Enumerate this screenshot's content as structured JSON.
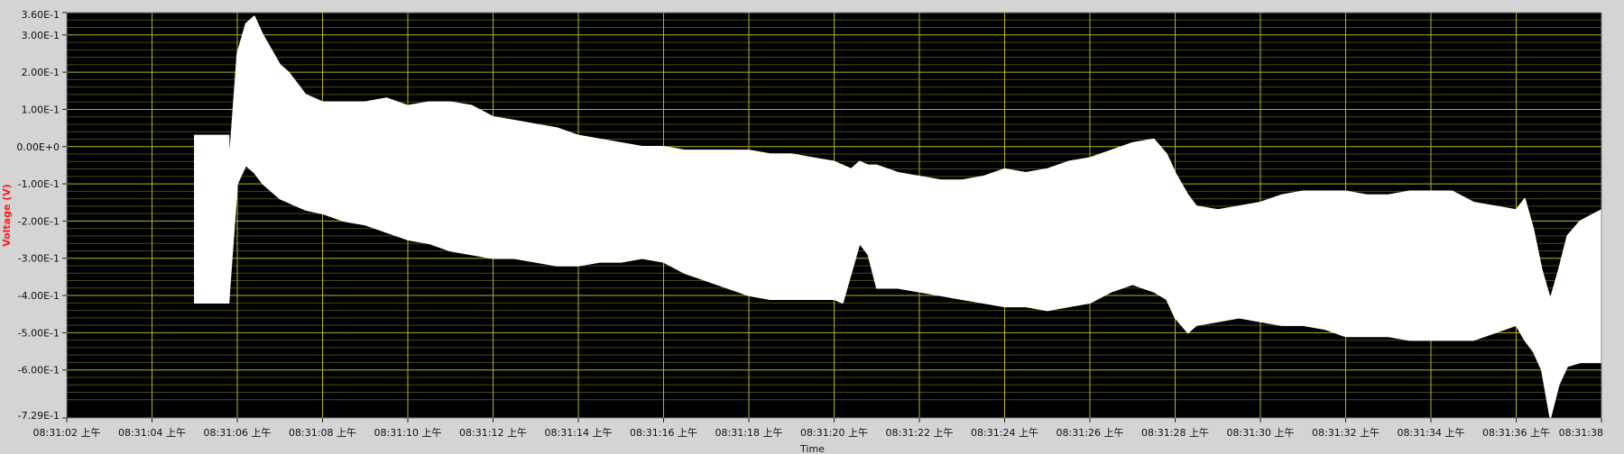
{
  "chart_data": {
    "type": "line",
    "title": "",
    "xlabel": "Time",
    "ylabel": "Voltage (V)",
    "xlim": [
      "08:31:02",
      "08:31:38"
    ],
    "ylim": [
      -0.729,
      0.36
    ],
    "y_ticks": [
      {
        "value": 0.36,
        "label": "3.60E-1"
      },
      {
        "value": 0.3,
        "label": "3.00E-1"
      },
      {
        "value": 0.2,
        "label": "2.00E-1"
      },
      {
        "value": 0.1,
        "label": "1.00E-1"
      },
      {
        "value": 0.0,
        "label": "0.00E+0"
      },
      {
        "value": -0.1,
        "label": "-1.00E-1"
      },
      {
        "value": -0.2,
        "label": "-2.00E-1"
      },
      {
        "value": -0.3,
        "label": "-3.00E-1"
      },
      {
        "value": -0.4,
        "label": "-4.00E-1"
      },
      {
        "value": -0.5,
        "label": "-5.00E-1"
      },
      {
        "value": -0.6,
        "label": "-6.00E-1"
      },
      {
        "value": -0.729,
        "label": "-7.29E-1"
      }
    ],
    "x_ticks": [
      {
        "value": "08:31:02",
        "label": "08:31:02 上午"
      },
      {
        "value": "08:31:04",
        "label": "08:31:04 上午"
      },
      {
        "value": "08:31:06",
        "label": "08:31:06 上午"
      },
      {
        "value": "08:31:08",
        "label": "08:31:08 上午"
      },
      {
        "value": "08:31:10",
        "label": "08:31:10 上午"
      },
      {
        "value": "08:31:12",
        "label": "08:31:12 上午"
      },
      {
        "value": "08:31:14",
        "label": "08:31:14 上午"
      },
      {
        "value": "08:31:16",
        "label": "08:31:16 上午"
      },
      {
        "value": "08:31:18",
        "label": "08:31:18 上午"
      },
      {
        "value": "08:31:20",
        "label": "08:31:20 上午"
      },
      {
        "value": "08:31:22",
        "label": "08:31:22 上午"
      },
      {
        "value": "08:31:24",
        "label": "08:31:24 上午"
      },
      {
        "value": "08:31:26",
        "label": "08:31:26 上午"
      },
      {
        "value": "08:31:28",
        "label": "08:31:28 上午"
      },
      {
        "value": "08:31:30",
        "label": "08:31:30 上午"
      },
      {
        "value": "08:31:32",
        "label": "08:31:32 上午"
      },
      {
        "value": "08:31:34",
        "label": "08:31:34 上午"
      },
      {
        "value": "08:31:36",
        "label": "08:31:36 上午"
      },
      {
        "value": "08:31:38",
        "label": "08:31:38"
      }
    ],
    "grid": true,
    "minor_grid_y": true,
    "legend": "none",
    "colors": {
      "plot_background": "#000000",
      "grid_major": "#b5b51e",
      "grid_minor": "#4a4a12",
      "signal": "#ffffff",
      "frame": "#d4d4d4",
      "ylabel_color": "#ff1a1a"
    },
    "series": [
      {
        "envelope": true,
        "x": [
          "08:31:05",
          "08:31:05.8",
          "08:31:05.81",
          "08:31:06",
          "08:31:06.2",
          "08:31:06.4",
          "08:31:06.6",
          "08:31:06.8",
          "08:31:07",
          "08:31:07.2",
          "08:31:07.4",
          "08:31:07.6",
          "08:31:08",
          "08:31:08.5",
          "08:31:09",
          "08:31:09.5",
          "08:31:10",
          "08:31:10.5",
          "08:31:11",
          "08:31:11.5",
          "08:31:12",
          "08:31:12.5",
          "08:31:13",
          "08:31:13.5",
          "08:31:14",
          "08:31:14.5",
          "08:31:15",
          "08:31:15.5",
          "08:31:16",
          "08:31:16.5",
          "08:31:17",
          "08:31:17.5",
          "08:31:18",
          "08:31:18.5",
          "08:31:19",
          "08:31:19.5",
          "08:31:20",
          "08:31:20.2",
          "08:31:20.4",
          "08:31:20.6",
          "08:31:20.8",
          "08:31:21",
          "08:31:21.5",
          "08:31:22",
          "08:31:22.5",
          "08:31:23",
          "08:31:23.5",
          "08:31:24",
          "08:31:24.5",
          "08:31:25",
          "08:31:25.5",
          "08:31:26",
          "08:31:26.5",
          "08:31:27",
          "08:31:27.5",
          "08:31:27.8",
          "08:31:28",
          "08:31:28.3",
          "08:31:28.5",
          "08:31:29",
          "08:31:29.5",
          "08:31:30",
          "08:31:30.5",
          "08:31:31",
          "08:31:31.5",
          "08:31:32",
          "08:31:32.5",
          "08:31:33",
          "08:31:33.5",
          "08:31:34",
          "08:31:34.5",
          "08:31:35",
          "08:31:35.5",
          "08:31:36",
          "08:31:36.2",
          "08:31:36.4",
          "08:31:36.6",
          "08:31:36.8",
          "08:31:37",
          "08:31:37.2",
          "08:31:37.5",
          "08:31:38"
        ],
        "upper": [
          0.03,
          0.03,
          -0.05,
          0.25,
          0.33,
          0.35,
          0.3,
          0.26,
          0.22,
          0.2,
          0.17,
          0.14,
          0.12,
          0.12,
          0.12,
          0.13,
          0.11,
          0.12,
          0.12,
          0.11,
          0.08,
          0.07,
          0.06,
          0.05,
          0.03,
          0.02,
          0.01,
          0.0,
          0.0,
          -0.01,
          -0.01,
          -0.01,
          -0.01,
          -0.02,
          -0.02,
          -0.03,
          -0.04,
          -0.05,
          -0.06,
          -0.04,
          -0.05,
          -0.05,
          -0.07,
          -0.08,
          -0.09,
          -0.09,
          -0.08,
          -0.06,
          -0.07,
          -0.06,
          -0.04,
          -0.03,
          -0.01,
          0.01,
          0.02,
          -0.02,
          -0.07,
          -0.13,
          -0.16,
          -0.17,
          -0.16,
          -0.15,
          -0.13,
          -0.12,
          -0.12,
          -0.12,
          -0.13,
          -0.13,
          -0.12,
          -0.12,
          -0.12,
          -0.15,
          -0.16,
          -0.17,
          -0.14,
          -0.22,
          -0.33,
          -0.41,
          -0.33,
          -0.24,
          -0.2,
          -0.17
        ],
        "lower": [
          -0.42,
          -0.42,
          -0.4,
          -0.1,
          -0.05,
          -0.07,
          -0.1,
          -0.12,
          -0.14,
          -0.15,
          -0.16,
          -0.17,
          -0.18,
          -0.2,
          -0.21,
          -0.23,
          -0.25,
          -0.26,
          -0.28,
          -0.29,
          -0.3,
          -0.3,
          -0.31,
          -0.32,
          -0.32,
          -0.31,
          -0.31,
          -0.3,
          -0.31,
          -0.34,
          -0.36,
          -0.38,
          -0.4,
          -0.41,
          -0.41,
          -0.41,
          -0.41,
          -0.42,
          -0.34,
          -0.26,
          -0.29,
          -0.38,
          -0.38,
          -0.39,
          -0.4,
          -0.41,
          -0.42,
          -0.43,
          -0.43,
          -0.44,
          -0.43,
          -0.42,
          -0.39,
          -0.37,
          -0.39,
          -0.41,
          -0.46,
          -0.5,
          -0.48,
          -0.47,
          -0.46,
          -0.47,
          -0.48,
          -0.48,
          -0.49,
          -0.51,
          -0.51,
          -0.51,
          -0.52,
          -0.52,
          -0.52,
          -0.52,
          -0.5,
          -0.48,
          -0.52,
          -0.55,
          -0.6,
          -0.73,
          -0.64,
          -0.59,
          -0.58,
          -0.58
        ]
      }
    ]
  }
}
